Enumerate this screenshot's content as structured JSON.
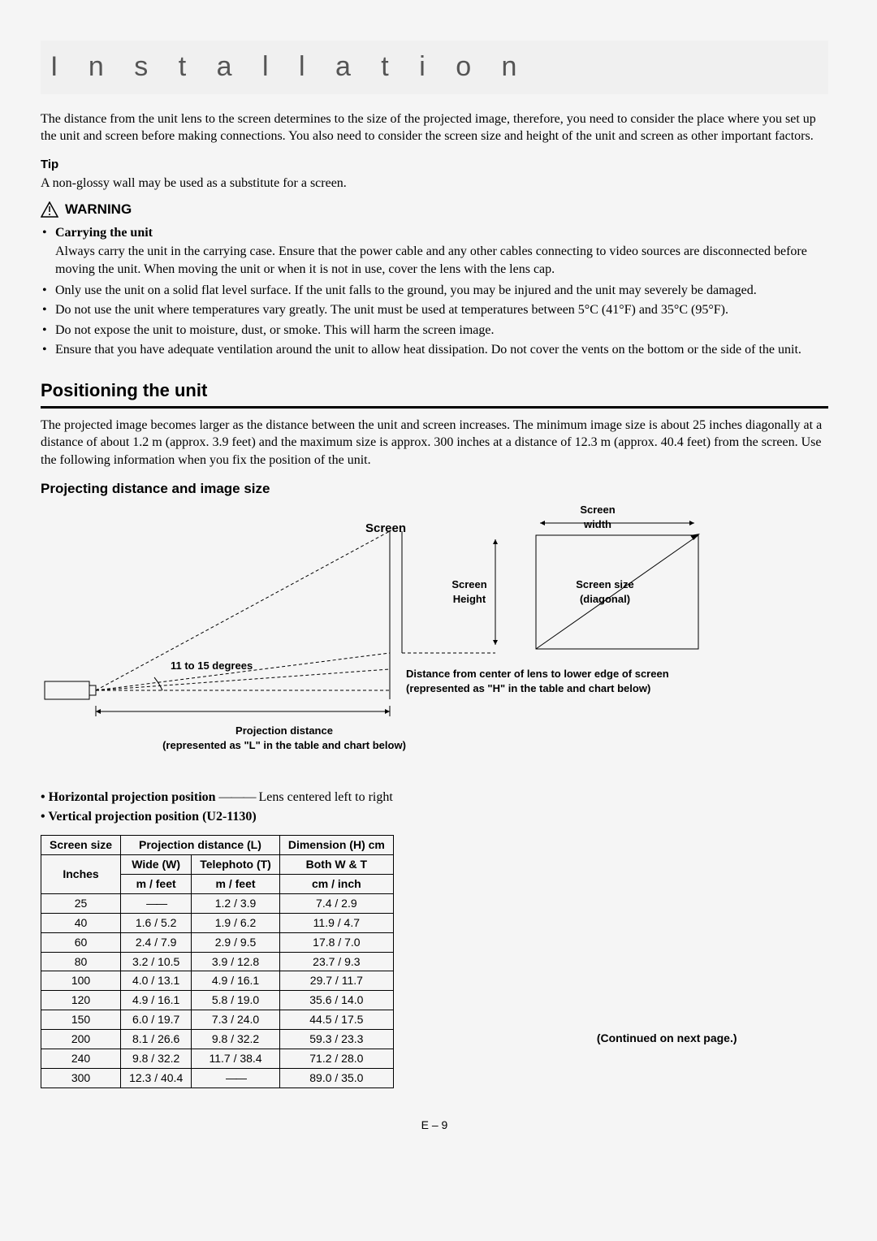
{
  "page": {
    "title": "I n s t a l l a t i o n",
    "intro": "The distance from the unit lens to the screen determines to the size of the projected image, therefore, you need to consider the place where you set up the unit and screen before making connections. You also need to consider the screen size and height of the unit and screen as other important factors.",
    "tip_label": "Tip",
    "tip_text": "A non-glossy wall may be used as a substitute for a screen.",
    "warning_label": "WARNING",
    "carry_heading": "Carrying the unit",
    "carry_text": "Always carry the unit in the carrying case. Ensure that the power cable and any other cables connecting to video sources are disconnected before moving the unit. When moving the unit or when it is not in use, cover the lens with the lens cap.",
    "bullets": [
      "Only use the unit on a solid flat level surface. If the unit falls to the ground, you may be injured and the unit may severely be damaged.",
      "Do not use the unit where temperatures vary greatly. The unit must be used at temperatures between 5°C (41°F) and 35°C (95°F).",
      "Do not expose the unit to moisture, dust, or smoke. This will harm the screen image.",
      "Ensure that you have adequate ventilation around the unit to allow heat dissipation. Do not cover the vents on the bottom or the side of the unit."
    ],
    "section_header": "Positioning the unit",
    "positioning_text": "The projected image becomes larger as the distance between the unit and screen increases. The minimum image size is about 25 inches diagonally at a distance of about 1.2 m (approx. 3.9 feet) and the maximum size is approx. 300 inches at a distance of 12.3 m (approx. 40.4 feet) from the screen. Use the following information when you fix the position of the unit.",
    "sub_header": "Projecting distance and image size",
    "diagram": {
      "screen_label": "Screen",
      "angle_label": "11 to 15 degrees",
      "proj_dist_1": "Projection distance",
      "proj_dist_2": "(represented as \"L\" in the table and chart below)",
      "h_dist_1": "Distance from center of lens to lower edge of screen",
      "h_dist_2": "(represented as \"H\" in the table and chart below)",
      "screen_width_1": "Screen",
      "screen_width_2": "width",
      "screen_height_1": "Screen",
      "screen_height_2": "Height",
      "screen_size_1": "Screen size",
      "screen_size_2": "(diagonal)"
    },
    "hp_label": "Horizontal projection position",
    "hp_text": "Lens centered left to right",
    "vp_label": "Vertical projection position (U2-1130)",
    "continued": "(Continued on next page.)",
    "footer": "E – 9"
  },
  "table": {
    "headers": {
      "r1c1": "Screen size",
      "r1c2": "Projection distance (L)",
      "r1c3": "Dimension (H) cm",
      "r2c1": "Wide (W)",
      "r2c2": "Telephoto (T)",
      "r2c3": "Both W & T",
      "r3c1": "Inches",
      "r3c2": "m / feet",
      "r3c3": "m / feet",
      "r3c4": "cm / inch"
    },
    "rows": [
      [
        "25",
        "——",
        "1.2 / 3.9",
        "7.4 / 2.9"
      ],
      [
        "40",
        "1.6 / 5.2",
        "1.9 / 6.2",
        "11.9 / 4.7"
      ],
      [
        "60",
        "2.4 / 7.9",
        "2.9 / 9.5",
        "17.8 / 7.0"
      ],
      [
        "80",
        "3.2 / 10.5",
        "3.9 / 12.8",
        "23.7 / 9.3"
      ],
      [
        "100",
        "4.0 / 13.1",
        "4.9 / 16.1",
        "29.7 / 11.7"
      ],
      [
        "120",
        "4.9 / 16.1",
        "5.8 / 19.0",
        "35.6 / 14.0"
      ],
      [
        "150",
        "6.0 / 19.7",
        "7.3 / 24.0",
        "44.5 / 17.5"
      ],
      [
        "200",
        "8.1 / 26.6",
        "9.8 / 32.2",
        "59.3 / 23.3"
      ],
      [
        "240",
        "9.8 / 32.2",
        "11.7 / 38.4",
        "71.2 / 28.0"
      ],
      [
        "300",
        "12.3 / 40.4",
        "——",
        "89.0 / 35.0"
      ]
    ]
  },
  "style": {
    "colors": {
      "bg": "#f5f5f5",
      "title": "#555",
      "rule": "#000"
    },
    "fonts": {
      "body": "Times New Roman",
      "headings": "Arial"
    }
  }
}
